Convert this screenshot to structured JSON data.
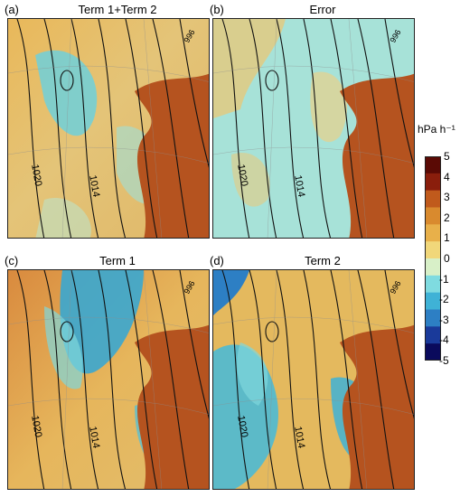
{
  "chart_data": {
    "type": "heatmap",
    "panels": [
      {
        "label": "(a)",
        "title": "Term 1+Term 2"
      },
      {
        "label": "(b)",
        "title": "Error"
      },
      {
        "label": "(c)",
        "title": "Term 1"
      },
      {
        "label": "(d)",
        "title": "Term 2"
      }
    ],
    "contour_labels": [
      "1020",
      "1014"
    ],
    "contour_corner_label": "996",
    "colorbar": {
      "unit": "hPa h⁻¹",
      "ticks": [
        "5",
        "4",
        "3",
        "2",
        "1",
        "0",
        "-1",
        "-2",
        "-3",
        "-4",
        "-5"
      ],
      "range": [
        -5,
        5
      ],
      "colors": [
        "#0a0a5c",
        "#1a3a9a",
        "#2d7fc4",
        "#3fb2d6",
        "#7fdbe0",
        "#d8f0c8",
        "#f1d77a",
        "#e8b04a",
        "#d98a2e",
        "#c05a1c",
        "#8a1e0c",
        "#5a0a05"
      ]
    },
    "colors": {
      "land": "#b5531f",
      "contour": "#111111",
      "warm": "#e9b24e",
      "cool": "#5fc9d6"
    }
  }
}
